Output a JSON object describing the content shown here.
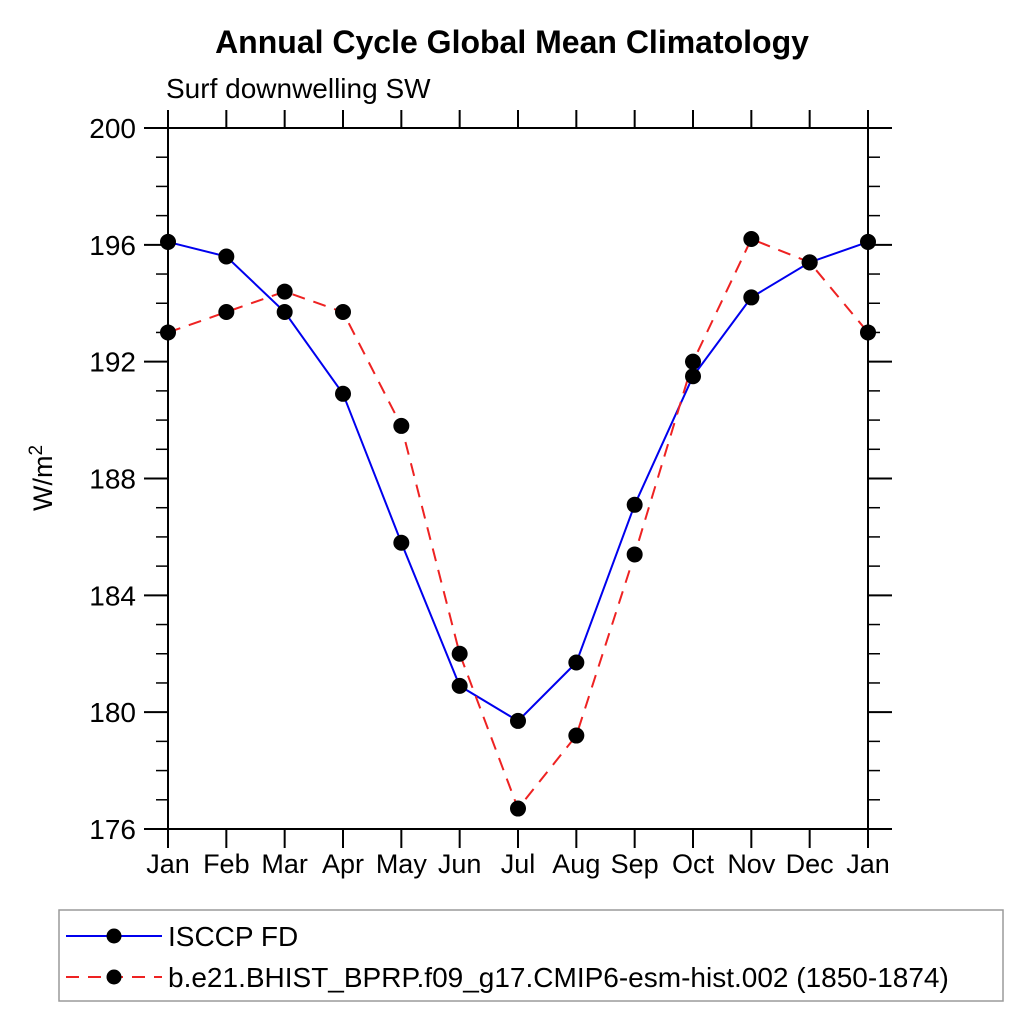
{
  "page": {
    "background": "#ffffff"
  },
  "chart_data": {
    "type": "line",
    "title": "Annual Cycle Global Mean Climatology",
    "subtitle": "Surf downwelling SW",
    "ylabel_base": "W/m",
    "ylabel_sup": "2",
    "categories": [
      "Jan",
      "Feb",
      "Mar",
      "Apr",
      "May",
      "Jun",
      "Jul",
      "Aug",
      "Sep",
      "Oct",
      "Nov",
      "Dec",
      "Jan"
    ],
    "ylim": [
      176,
      200
    ],
    "ytick_major_step": 4,
    "ytick_minor_step": 1,
    "ytick_labels": [
      "176",
      "180",
      "184",
      "188",
      "192",
      "196",
      "200"
    ],
    "grid": false,
    "legend_position": "bottom-left-box",
    "axis_color": "#000000",
    "legend_border_color": "#9a9a9a",
    "marker_color": "#000000",
    "series": [
      {
        "name": "ISCCP FD",
        "color": "#0000ee",
        "line_style": "solid",
        "marker": "circle",
        "values": [
          196.1,
          195.6,
          193.7,
          190.9,
          185.8,
          180.9,
          179.7,
          181.7,
          187.1,
          191.5,
          194.2,
          195.4,
          196.1
        ]
      },
      {
        "name": "b.e21.BHIST_BPRP.f09_g17.CMIP6-esm-hist.002 (1850-1874)",
        "color": "#ee2222",
        "line_style": "dashed",
        "marker": "circle",
        "values": [
          193.0,
          193.7,
          194.4,
          193.7,
          189.8,
          182.0,
          176.7,
          179.2,
          185.4,
          192.0,
          196.2,
          195.4,
          193.0
        ]
      }
    ]
  }
}
